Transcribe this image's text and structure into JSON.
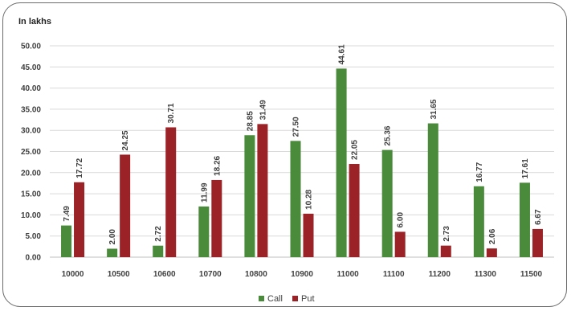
{
  "chart_data": {
    "type": "bar",
    "unit_label": "In lakhs",
    "categories": [
      "10000",
      "10500",
      "10600",
      "10700",
      "10800",
      "10900",
      "11000",
      "11100",
      "11200",
      "11300",
      "11500"
    ],
    "series": [
      {
        "name": "Call",
        "color": "#4a8a3b",
        "values": [
          7.49,
          2.0,
          2.72,
          11.99,
          28.85,
          27.5,
          44.61,
          25.36,
          31.65,
          16.77,
          17.61
        ]
      },
      {
        "name": "Put",
        "color": "#9b2226",
        "values": [
          17.72,
          24.25,
          30.71,
          18.26,
          31.49,
          10.28,
          22.05,
          6.0,
          2.73,
          2.06,
          6.67
        ]
      }
    ],
    "yticks": [
      "0.00",
      "5.00",
      "10.00",
      "15.00",
      "20.00",
      "25.00",
      "30.00",
      "35.00",
      "40.00",
      "45.00",
      "50.00"
    ],
    "ylim": [
      0,
      50
    ],
    "grid": true,
    "legend_position": "bottom"
  }
}
